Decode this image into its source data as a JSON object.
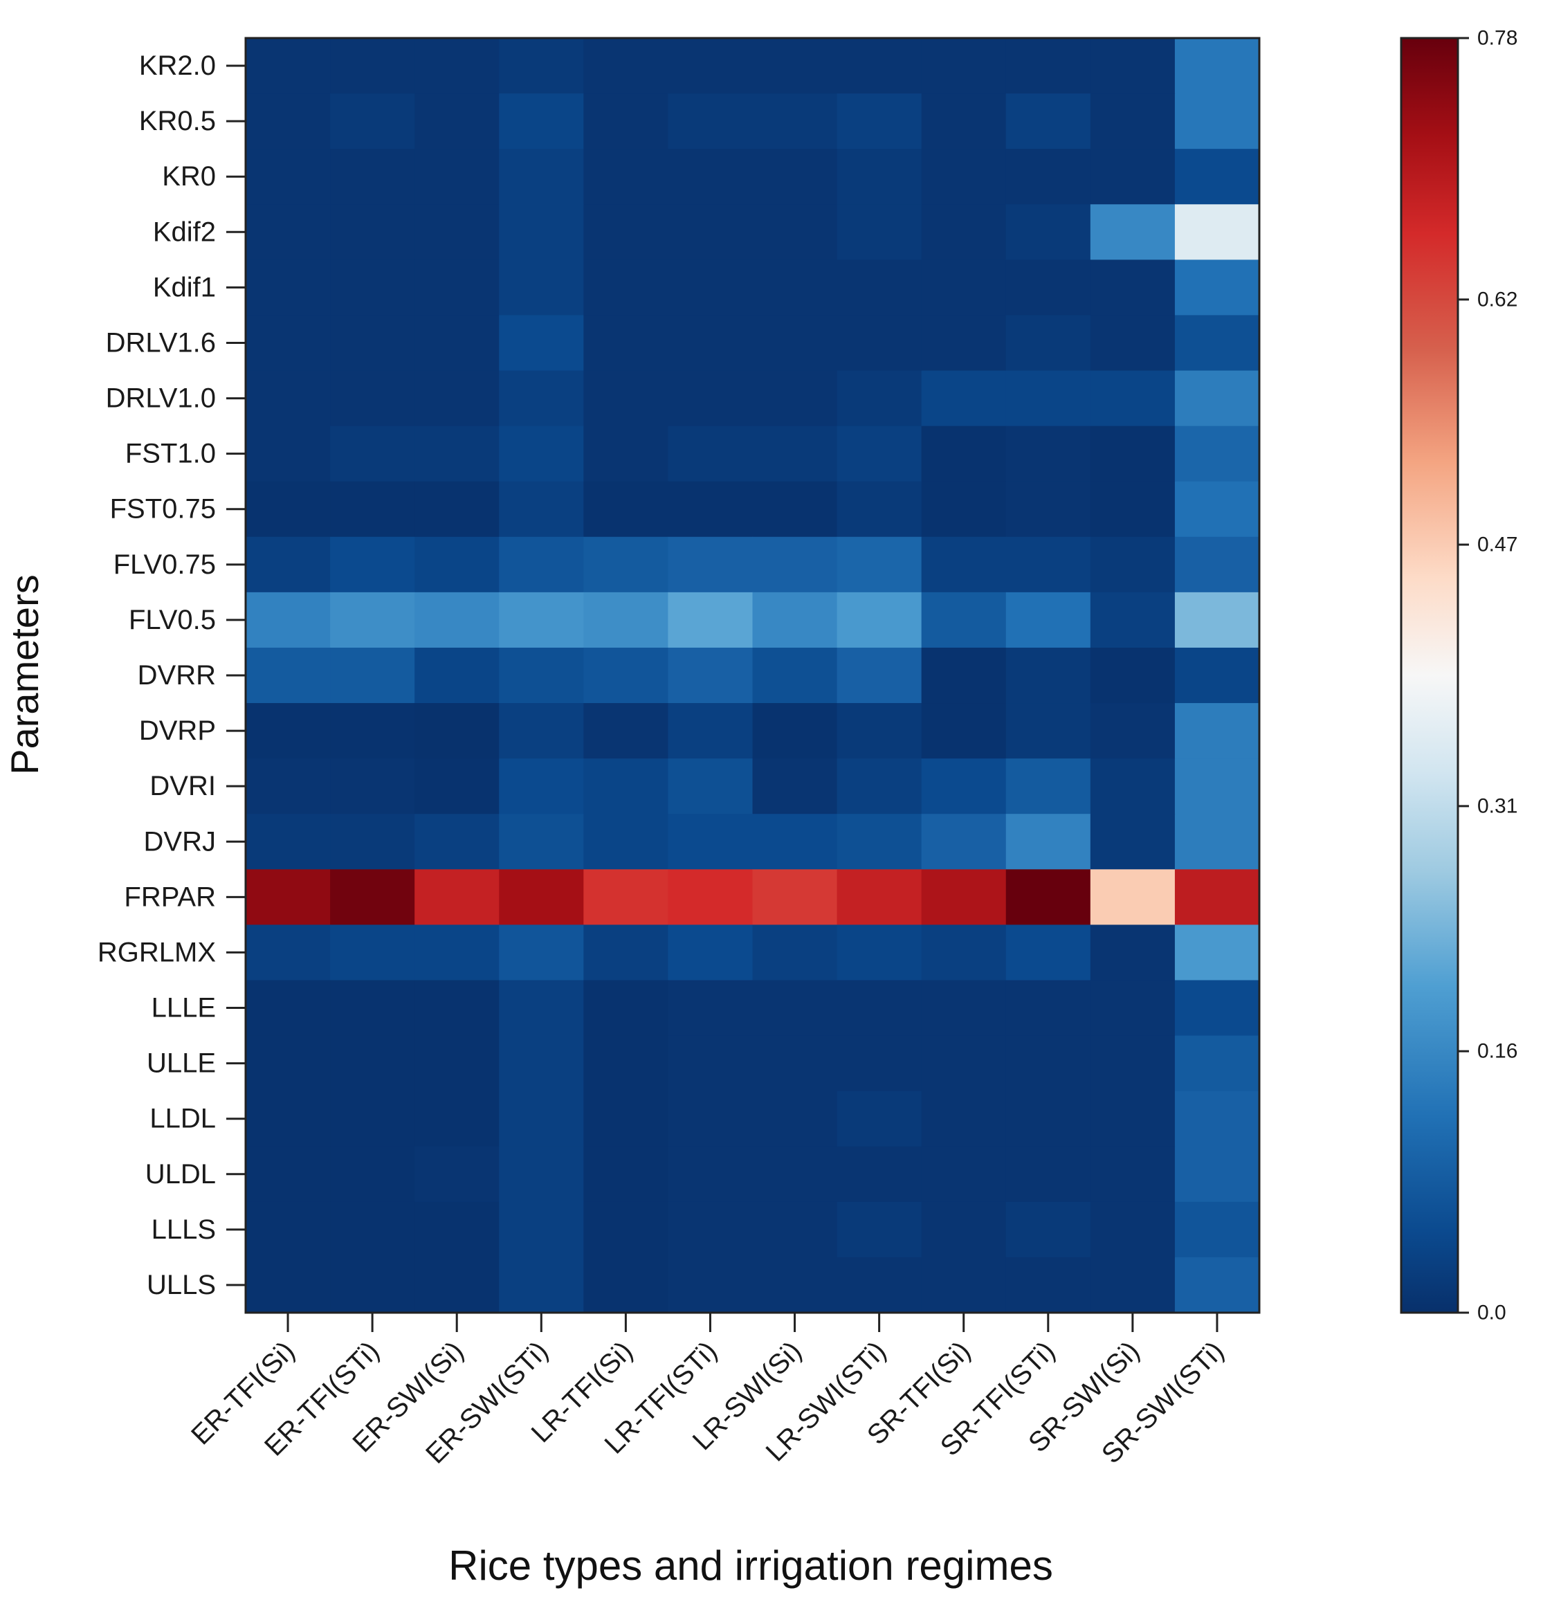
{
  "chart_data": {
    "type": "heatmap",
    "title": "",
    "xlabel": "Rice types and irrigation regimes",
    "ylabel": "Parameters",
    "x_categories": [
      "ER-TFI(Si)",
      "ER-TFI(STi)",
      "ER-SWI(Si)",
      "ER-SWI(STi)",
      "LR-TFI(Si)",
      "LR-TFI(STi)",
      "LR-SWI(Si)",
      "LR-SWI(STi)",
      "SR-TFI(Si)",
      "SR-TFI(STi)",
      "SR-SWI(Si)",
      "SR-SWI(STi)"
    ],
    "y_categories": [
      "KR2.0",
      "KR0.5",
      "KR0",
      "Kdif2",
      "Kdif1",
      "DRLV1.6",
      "DRLV1.0",
      "FST1.0",
      "FST0.75",
      "FLV0.75",
      "FLV0.5",
      "DVRR",
      "DVRP",
      "DVRI",
      "DVRJ",
      "FRPAR",
      "RGRLMX",
      "LLLE",
      "ULLE",
      "LLDL",
      "ULDL",
      "LLLS",
      "ULLS"
    ],
    "values": [
      [
        0.01,
        0.01,
        0.01,
        0.02,
        0.01,
        0.01,
        0.01,
        0.01,
        0.01,
        0.01,
        0.01,
        0.13
      ],
      [
        0.01,
        0.02,
        0.01,
        0.04,
        0.01,
        0.02,
        0.02,
        0.03,
        0.01,
        0.03,
        0.01,
        0.13
      ],
      [
        0.01,
        0.01,
        0.01,
        0.03,
        0.01,
        0.01,
        0.01,
        0.02,
        0.01,
        0.01,
        0.01,
        0.05
      ],
      [
        0.01,
        0.01,
        0.01,
        0.03,
        0.01,
        0.01,
        0.01,
        0.02,
        0.01,
        0.02,
        0.16,
        0.35
      ],
      [
        0.01,
        0.01,
        0.01,
        0.03,
        0.01,
        0.01,
        0.01,
        0.01,
        0.01,
        0.01,
        0.01,
        0.12
      ],
      [
        0.01,
        0.01,
        0.01,
        0.05,
        0.01,
        0.01,
        0.01,
        0.01,
        0.01,
        0.02,
        0.01,
        0.06
      ],
      [
        0.01,
        0.01,
        0.01,
        0.03,
        0.01,
        0.01,
        0.01,
        0.02,
        0.04,
        0.04,
        0.04,
        0.14
      ],
      [
        0.01,
        0.02,
        0.02,
        0.04,
        0.01,
        0.02,
        0.02,
        0.03,
        0.005,
        0.01,
        0.005,
        0.1
      ],
      [
        0.005,
        0.005,
        0.005,
        0.03,
        0.005,
        0.005,
        0.005,
        0.02,
        0.005,
        0.01,
        0.005,
        0.12
      ],
      [
        0.03,
        0.05,
        0.04,
        0.07,
        0.08,
        0.09,
        0.09,
        0.1,
        0.03,
        0.03,
        0.02,
        0.09
      ],
      [
        0.15,
        0.17,
        0.16,
        0.18,
        0.17,
        0.21,
        0.16,
        0.19,
        0.08,
        0.12,
        0.03,
        0.24
      ],
      [
        0.08,
        0.08,
        0.04,
        0.06,
        0.07,
        0.09,
        0.06,
        0.09,
        0.005,
        0.02,
        0.005,
        0.04
      ],
      [
        0.005,
        0.005,
        0.003,
        0.03,
        0.01,
        0.03,
        0.005,
        0.02,
        0.005,
        0.02,
        0.01,
        0.14
      ],
      [
        0.01,
        0.01,
        0.005,
        0.05,
        0.04,
        0.06,
        0.01,
        0.03,
        0.05,
        0.08,
        0.02,
        0.14
      ],
      [
        0.02,
        0.02,
        0.03,
        0.06,
        0.04,
        0.05,
        0.05,
        0.06,
        0.09,
        0.15,
        0.02,
        0.14
      ],
      [
        0.74,
        0.77,
        0.68,
        0.72,
        0.65,
        0.66,
        0.64,
        0.68,
        0.71,
        0.78,
        0.47,
        0.69
      ],
      [
        0.03,
        0.04,
        0.04,
        0.07,
        0.03,
        0.05,
        0.03,
        0.04,
        0.03,
        0.05,
        0.01,
        0.19
      ],
      [
        0.005,
        0.005,
        0.005,
        0.03,
        0.005,
        0.01,
        0.01,
        0.01,
        0.01,
        0.01,
        0.01,
        0.05
      ],
      [
        0.005,
        0.005,
        0.005,
        0.03,
        0.005,
        0.01,
        0.01,
        0.01,
        0.01,
        0.01,
        0.01,
        0.08
      ],
      [
        0.005,
        0.005,
        0.005,
        0.03,
        0.005,
        0.01,
        0.01,
        0.02,
        0.01,
        0.01,
        0.01,
        0.09
      ],
      [
        0.005,
        0.005,
        0.01,
        0.03,
        0.005,
        0.01,
        0.01,
        0.01,
        0.01,
        0.01,
        0.01,
        0.09
      ],
      [
        0.005,
        0.005,
        0.005,
        0.03,
        0.005,
        0.01,
        0.01,
        0.02,
        0.01,
        0.02,
        0.01,
        0.07
      ],
      [
        0.005,
        0.005,
        0.005,
        0.03,
        0.005,
        0.01,
        0.01,
        0.01,
        0.01,
        0.01,
        0.01,
        0.09
      ]
    ],
    "colorbar": {
      "min": 0.0,
      "max": 0.78,
      "tick_values": [
        0.0,
        0.16,
        0.31,
        0.47,
        0.62,
        0.78
      ],
      "tick_labels": [
        "0.0",
        "0.16",
        "0.31",
        "0.47",
        "0.62",
        "0.78"
      ],
      "colormap": "RdBu_r",
      "color_stops": [
        {
          "v": 0.0,
          "c": "#08306b"
        },
        {
          "v": 0.05,
          "c": "#0b4a8f"
        },
        {
          "v": 0.12,
          "c": "#2171b5"
        },
        {
          "v": 0.2,
          "c": "#4f9fd2"
        },
        {
          "v": 0.27,
          "c": "#9ecae1"
        },
        {
          "v": 0.33,
          "c": "#d1e5f0"
        },
        {
          "v": 0.39,
          "c": "#f7f7f7"
        },
        {
          "v": 0.45,
          "c": "#fddbc7"
        },
        {
          "v": 0.52,
          "c": "#f4a582"
        },
        {
          "v": 0.59,
          "c": "#d6604d"
        },
        {
          "v": 0.66,
          "c": "#d42a2a"
        },
        {
          "v": 0.72,
          "c": "#a50f15"
        },
        {
          "v": 0.78,
          "c": "#67000d"
        }
      ]
    }
  }
}
